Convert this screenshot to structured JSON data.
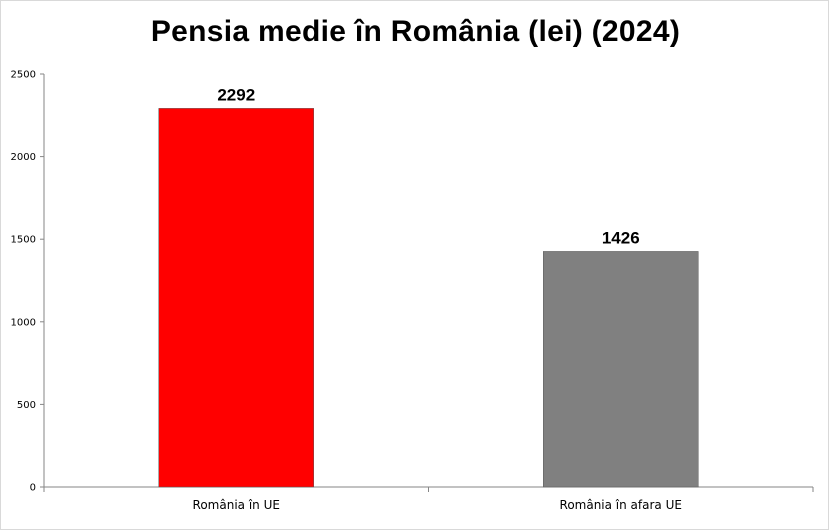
{
  "chart_data": {
    "type": "bar",
    "title": "Pensia medie în România (lei) (2024)",
    "categories": [
      "România în UE",
      "România în afara UE"
    ],
    "values": [
      2292,
      1426
    ],
    "colors": [
      "#ff0000",
      "#808080"
    ],
    "data_labels": [
      "2292",
      "1426"
    ],
    "y_ticks": [
      0,
      500,
      1000,
      1500,
      2000,
      2500
    ],
    "ylim": [
      0,
      2500
    ],
    "xlabel": "",
    "ylabel": "",
    "grid": false,
    "legend": "none"
  }
}
